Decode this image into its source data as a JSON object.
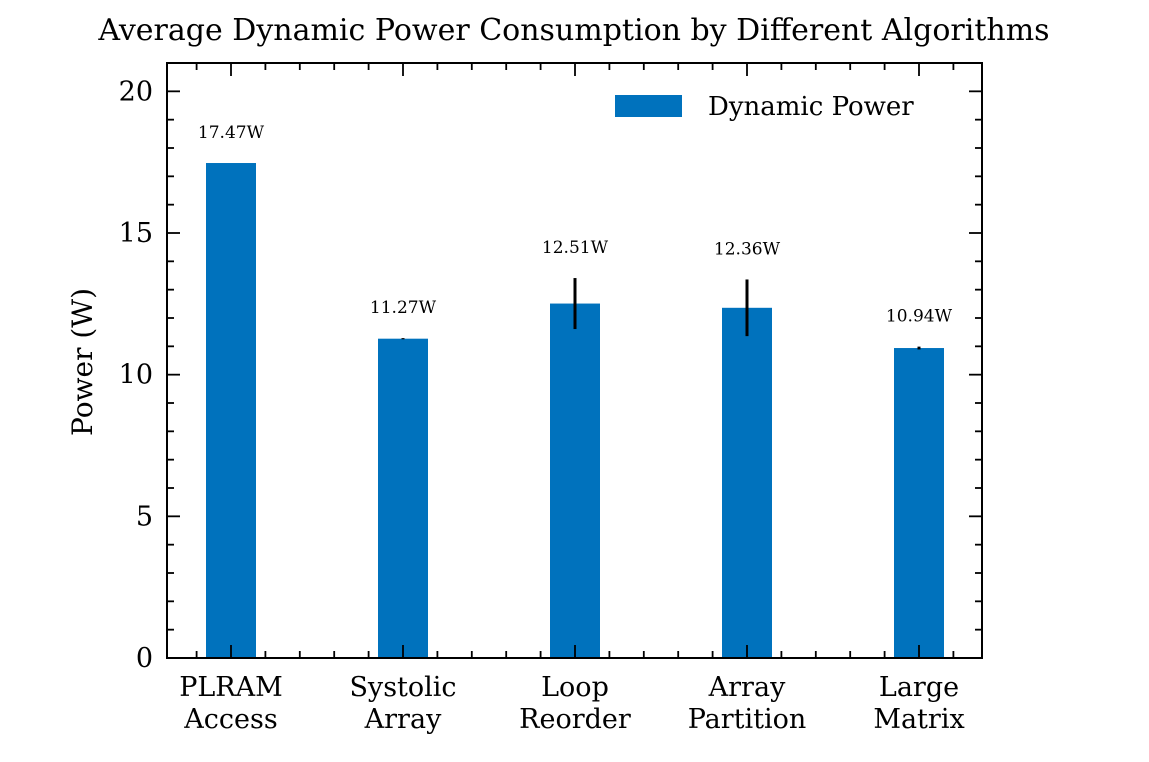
{
  "chart_data": {
    "type": "bar",
    "title": "Average Dynamic Power Consumption by Different Algorithms",
    "xlabel": "",
    "ylabel": "Power (W)",
    "ylim": [
      0,
      21
    ],
    "yticks": [
      0,
      5,
      10,
      15,
      20
    ],
    "y_minor_step": 1,
    "categories": [
      [
        "PLRAM",
        "Access"
      ],
      [
        "Systolic",
        "Array"
      ],
      [
        "Loop",
        "Reorder"
      ],
      [
        "Array",
        "Partition"
      ],
      [
        "Large",
        "Matrix"
      ]
    ],
    "series": [
      {
        "name": "Dynamic Power",
        "color": "#0072bd",
        "values": [
          17.47,
          11.27,
          12.51,
          12.36,
          10.94
        ],
        "errors": [
          0.0,
          0.02,
          0.9,
          1.0,
          0.05
        ],
        "value_labels": [
          "17.47W",
          "11.27W",
          "12.51W",
          "12.36W",
          "10.94W"
        ]
      }
    ],
    "legend": {
      "position": "top-right"
    },
    "grid": false,
    "tick_direction": "in",
    "mirrored_ticks": true
  }
}
